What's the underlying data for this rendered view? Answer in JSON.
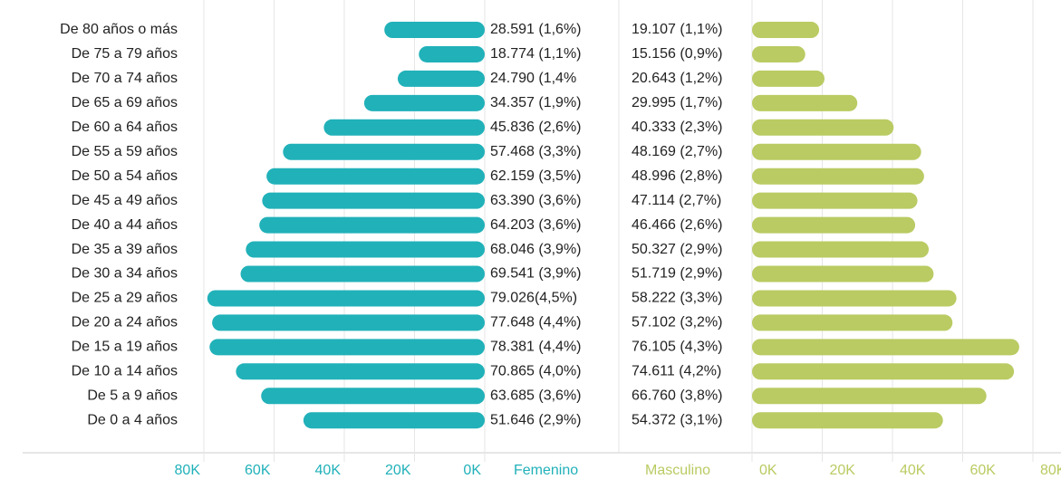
{
  "chart_data": {
    "type": "pyramid",
    "categories": [
      "De 80 años o más",
      "De 75 a 79 años",
      "De 70 a 74 años",
      "De 65 a 69 años",
      "De 60 a 64 años",
      "De 55 a 59 años",
      "De 50 a 54 años",
      "De 45 a 49 años",
      "De 40 a 44 años",
      "De 35 a 39 años",
      "De 30 a 34 años",
      "De 25 a 29 años",
      "De 20 a 24 años",
      "De 15 a 19 años",
      "De 10 a 14 años",
      "De 5 a 9 años",
      "De 0 a 4 años"
    ],
    "series": [
      {
        "name": "Femenino",
        "color": "#21b1b9",
        "values": [
          28591,
          18774,
          24790,
          34357,
          45836,
          57468,
          62159,
          63390,
          64203,
          68046,
          69541,
          79026,
          77648,
          78381,
          70865,
          63685,
          51646
        ],
        "value_labels": [
          "28.591 (1,6%)",
          "18.774 (1,1%)",
          "24.790 (1,4%",
          "34.357 (1,9%)",
          "45.836 (2,6%)",
          "57.468 (3,3%)",
          "62.159 (3,5%)",
          "63.390 (3,6%)",
          "64.203 (3,6%)",
          "68.046 (3,9%)",
          "69.541 (3,9%)",
          "79.026(4,5%)",
          "77.648 (4,4%)",
          "78.381 (4,4%)",
          "70.865 (4,0%)",
          "63.685 (3,6%)",
          "51.646 (2,9%)"
        ]
      },
      {
        "name": "Masculino",
        "color": "#b9cb62",
        "values": [
          19107,
          15156,
          20643,
          29995,
          40333,
          48169,
          48996,
          47114,
          46466,
          50327,
          51719,
          58222,
          57102,
          76105,
          74611,
          66760,
          54372
        ],
        "value_labels": [
          "19.107 (1,1%)",
          "15.156 (0,9%)",
          "20.643 (1,2%)",
          "29.995 (1,7%)",
          "40.333 (2,3%)",
          "48.169 (2,7%)",
          "48.996 (2,8%)",
          "47.114 (2,7%)",
          "46.466 (2,6%)",
          "50.327 (2,9%)",
          "51.719 (2,9%)",
          "58.222 (3,3%)",
          "57.102 (3,2%)",
          "76.105 (4,3%)",
          "74.611 (4,2%)",
          "66.760 (3,8%)",
          "54.372 (3,1%)"
        ]
      }
    ],
    "xlim": [
      0,
      80000
    ],
    "xticks": [
      {
        "value": 0,
        "label": "0K"
      },
      {
        "value": 20000,
        "label": "20K"
      },
      {
        "value": 40000,
        "label": "40K"
      },
      {
        "value": 60000,
        "label": "60K"
      },
      {
        "value": 80000,
        "label": "80K"
      }
    ],
    "grid": true
  }
}
